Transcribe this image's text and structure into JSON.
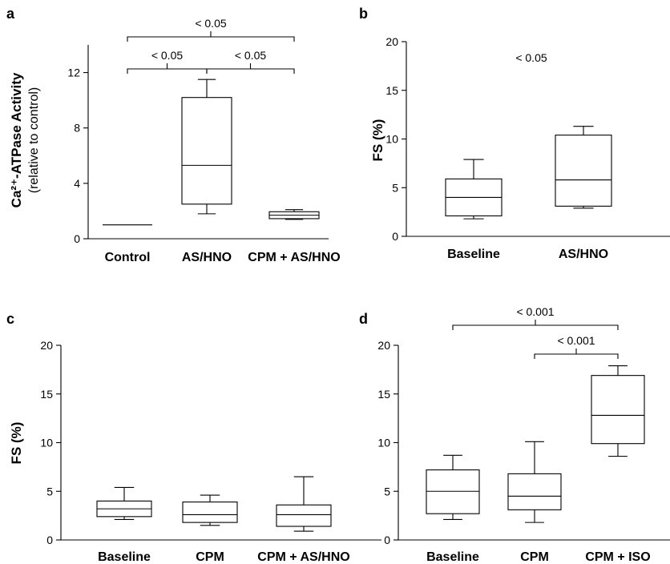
{
  "chart_data": [
    {
      "panel": "a",
      "type": "box",
      "ylabel": "Ca²⁺-ATPase Activity",
      "ylabel_sub": "(relative to control)",
      "ylim": [
        0,
        14
      ],
      "yticks": [
        0,
        4,
        8,
        12
      ],
      "categories": [
        "Control",
        "AS/HNO",
        "CPM + AS/HNO"
      ],
      "boxes": [
        {
          "min": 1.0,
          "q1": 1.0,
          "median": 1.0,
          "q3": 1.0,
          "max": 1.0
        },
        {
          "min": 1.8,
          "q1": 2.5,
          "median": 5.3,
          "q3": 10.2,
          "max": 11.5
        },
        {
          "min": 1.4,
          "q1": 1.45,
          "median": 1.7,
          "q3": 1.95,
          "max": 2.1
        }
      ],
      "comparisons": [
        {
          "from": 0,
          "to": 2,
          "label": "< 0.05",
          "level": 2
        },
        {
          "from": 0,
          "to": 1,
          "label": "< 0.05",
          "level": 1
        },
        {
          "from": 1,
          "to": 2,
          "label": "< 0.05",
          "level": 1
        }
      ]
    },
    {
      "panel": "b",
      "type": "box",
      "ylabel": "FS (%)",
      "ylim": [
        0,
        20
      ],
      "yticks": [
        0,
        5,
        10,
        15,
        20
      ],
      "categories": [
        "Baseline",
        "AS/HNO"
      ],
      "boxes": [
        {
          "min": 1.8,
          "q1": 2.1,
          "median": 4.0,
          "q3": 5.9,
          "max": 7.9
        },
        {
          "min": 2.9,
          "q1": 3.1,
          "median": 5.8,
          "q3": 10.4,
          "max": 11.3
        }
      ],
      "annotation": "< 0.05"
    },
    {
      "panel": "c",
      "type": "box",
      "ylabel": "FS (%)",
      "ylim": [
        0,
        20
      ],
      "yticks": [
        0,
        5,
        10,
        15,
        20
      ],
      "categories": [
        "Baseline",
        "CPM",
        "CPM + AS/HNO"
      ],
      "boxes": [
        {
          "min": 2.1,
          "q1": 2.4,
          "median": 3.2,
          "q3": 4.0,
          "max": 5.4
        },
        {
          "min": 1.5,
          "q1": 1.8,
          "median": 2.6,
          "q3": 3.9,
          "max": 4.6
        },
        {
          "min": 0.9,
          "q1": 1.4,
          "median": 2.6,
          "q3": 3.6,
          "max": 6.5
        }
      ]
    },
    {
      "panel": "d",
      "type": "box",
      "ylabel": "",
      "ylim": [
        0,
        20
      ],
      "yticks": [
        0,
        5,
        10,
        15,
        20
      ],
      "categories": [
        "Baseline",
        "CPM",
        "CPM + ISO"
      ],
      "boxes": [
        {
          "min": 2.1,
          "q1": 2.7,
          "median": 5.0,
          "q3": 7.2,
          "max": 8.7
        },
        {
          "min": 1.8,
          "q1": 3.1,
          "median": 4.5,
          "q3": 6.8,
          "max": 10.1
        },
        {
          "min": 8.6,
          "q1": 9.9,
          "median": 12.8,
          "q3": 16.9,
          "max": 17.9
        }
      ],
      "comparisons": [
        {
          "from": 0,
          "to": 2,
          "label": "< 0.001",
          "level": 2
        },
        {
          "from": 1,
          "to": 2,
          "label": "< 0.001",
          "level": 1
        }
      ]
    }
  ]
}
